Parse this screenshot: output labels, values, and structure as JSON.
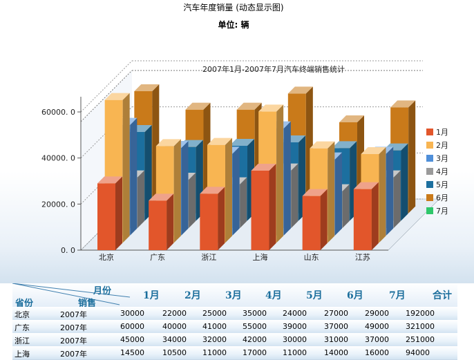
{
  "page": {
    "title": "汽车年度销量 (动态显示图)",
    "unit": "单位: 辆"
  },
  "chart_data": {
    "type": "bar",
    "title": "2007年1月-2007年7月汽车终端销售统计",
    "categories": [
      "北京",
      "广东",
      "浙江",
      "上海",
      "山东",
      "江苏"
    ],
    "yticks": [
      "0. 0",
      "20000. 0",
      "40000. 0",
      "60000. 0"
    ],
    "ylim": [
      0,
      66000
    ],
    "legend_position": "right",
    "series": [
      {
        "name": "1月",
        "color": "#e2562b",
        "values": [
          29000,
          21500,
          24500,
          34500,
          23500,
          26500
        ]
      },
      {
        "name": "2月",
        "color": "#f8b552",
        "values": [
          62000,
          42000,
          42500,
          57000,
          41000,
          38500
        ]
      },
      {
        "name": "3月",
        "color": "#4f8fd9",
        "values": [
          48000,
          38000,
          35500,
          46500,
          33000,
          35500
        ]
      },
      {
        "name": "4月",
        "color": "#9a9a9a",
        "values": [
          22000,
          21000,
          19000,
          25000,
          16000,
          22000
        ]
      },
      {
        "name": "5月",
        "color": "#1c6f9f",
        "values": [
          38500,
          32000,
          32500,
          34000,
          31500,
          30500
        ]
      },
      {
        "name": "6月",
        "color": "#c97a1a",
        "values": [
          53000,
          45000,
          45000,
          52000,
          39500,
          46000
        ]
      },
      {
        "name": "7月",
        "color": "#2fc76a",
        "values": [
          0,
          0,
          0,
          0,
          0,
          0
        ]
      }
    ]
  },
  "table": {
    "corner_month": "月份",
    "corner_sales": "销售",
    "corner_province": "省份",
    "columns": [
      "1月",
      "2月",
      "3月",
      "4月",
      "5月",
      "6月",
      "7月",
      "合计"
    ],
    "rows": [
      {
        "province": "北京",
        "year": "2007年",
        "values": [
          "30000",
          "22000",
          "25000",
          "35000",
          "24000",
          "27000",
          "29000",
          "192000"
        ]
      },
      {
        "province": "广东",
        "year": "2007年",
        "values": [
          "60000",
          "40000",
          "41000",
          "55000",
          "39000",
          "37000",
          "49000",
          "321000"
        ]
      },
      {
        "province": "浙江",
        "year": "2007年",
        "values": [
          "45000",
          "34000",
          "32000",
          "42000",
          "30000",
          "31000",
          "37000",
          "251000"
        ]
      },
      {
        "province": "上海",
        "year": "2007年",
        "values": [
          "14500",
          "10500",
          "11000",
          "17000",
          "11000",
          "14000",
          "16000",
          "94000"
        ]
      }
    ]
  }
}
